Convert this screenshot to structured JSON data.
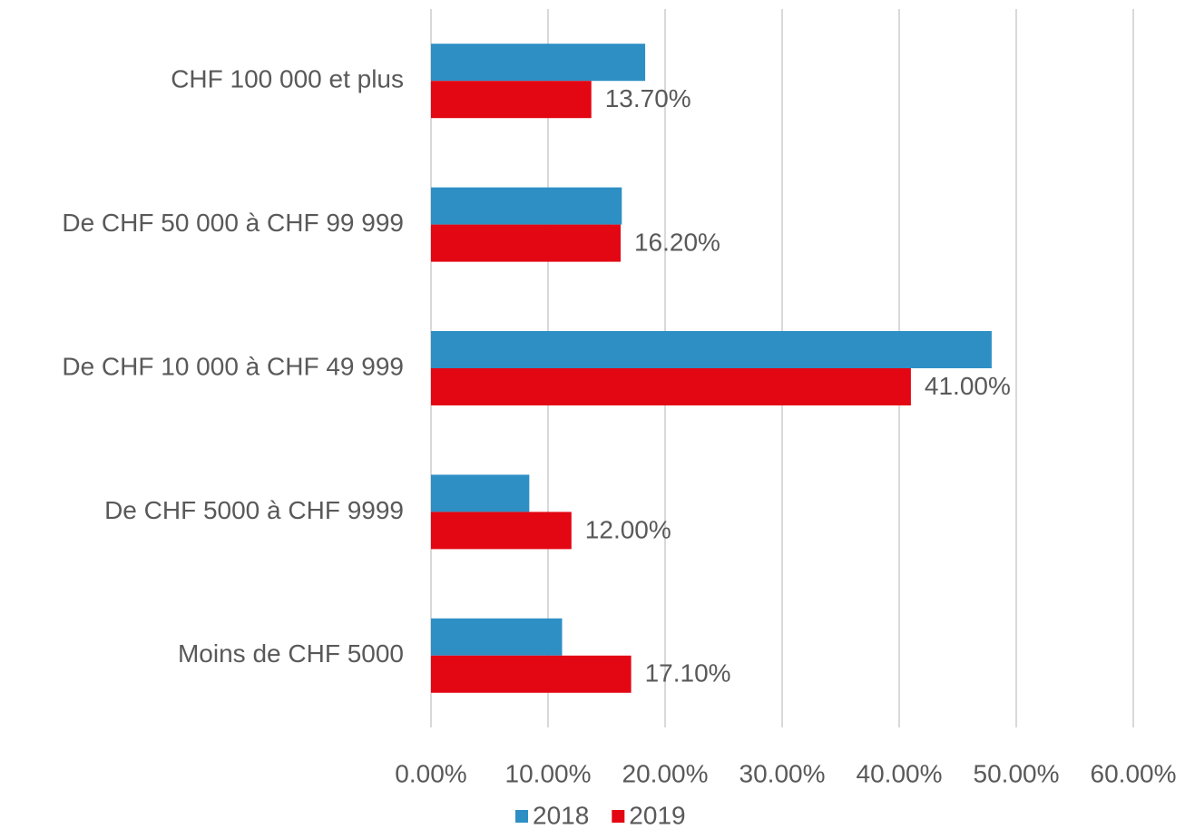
{
  "chart_data": {
    "type": "hbar",
    "categories": [
      "CHF 100 000 et plus",
      "De CHF 50 000 à CHF 99 999",
      "De CHF 10 000 à CHF 49 999",
      "De CHF 5000 à CHF 9999",
      "Moins de CHF 5000"
    ],
    "series": [
      {
        "name": "2018",
        "color": "#2e8fc5",
        "values": [
          18.3,
          16.3,
          47.9,
          8.4,
          11.2
        ]
      },
      {
        "name": "2019",
        "color": "#e30613",
        "values": [
          13.7,
          16.2,
          41.0,
          12.0,
          17.1
        ],
        "value_labels": [
          "13.70%",
          "16.20%",
          "41.00%",
          "12.00%",
          "17.10%"
        ]
      }
    ],
    "xlim": [
      0,
      60
    ],
    "xticks": [
      {
        "value": 0,
        "label": "0.00%"
      },
      {
        "value": 10,
        "label": "10.00%"
      },
      {
        "value": 20,
        "label": "20.00%"
      },
      {
        "value": 30,
        "label": "30.00%"
      },
      {
        "value": 40,
        "label": "40.00%"
      },
      {
        "value": 50,
        "label": "50.00%"
      },
      {
        "value": 60,
        "label": "60.00%"
      }
    ],
    "grid": true,
    "legend": "bottom"
  }
}
